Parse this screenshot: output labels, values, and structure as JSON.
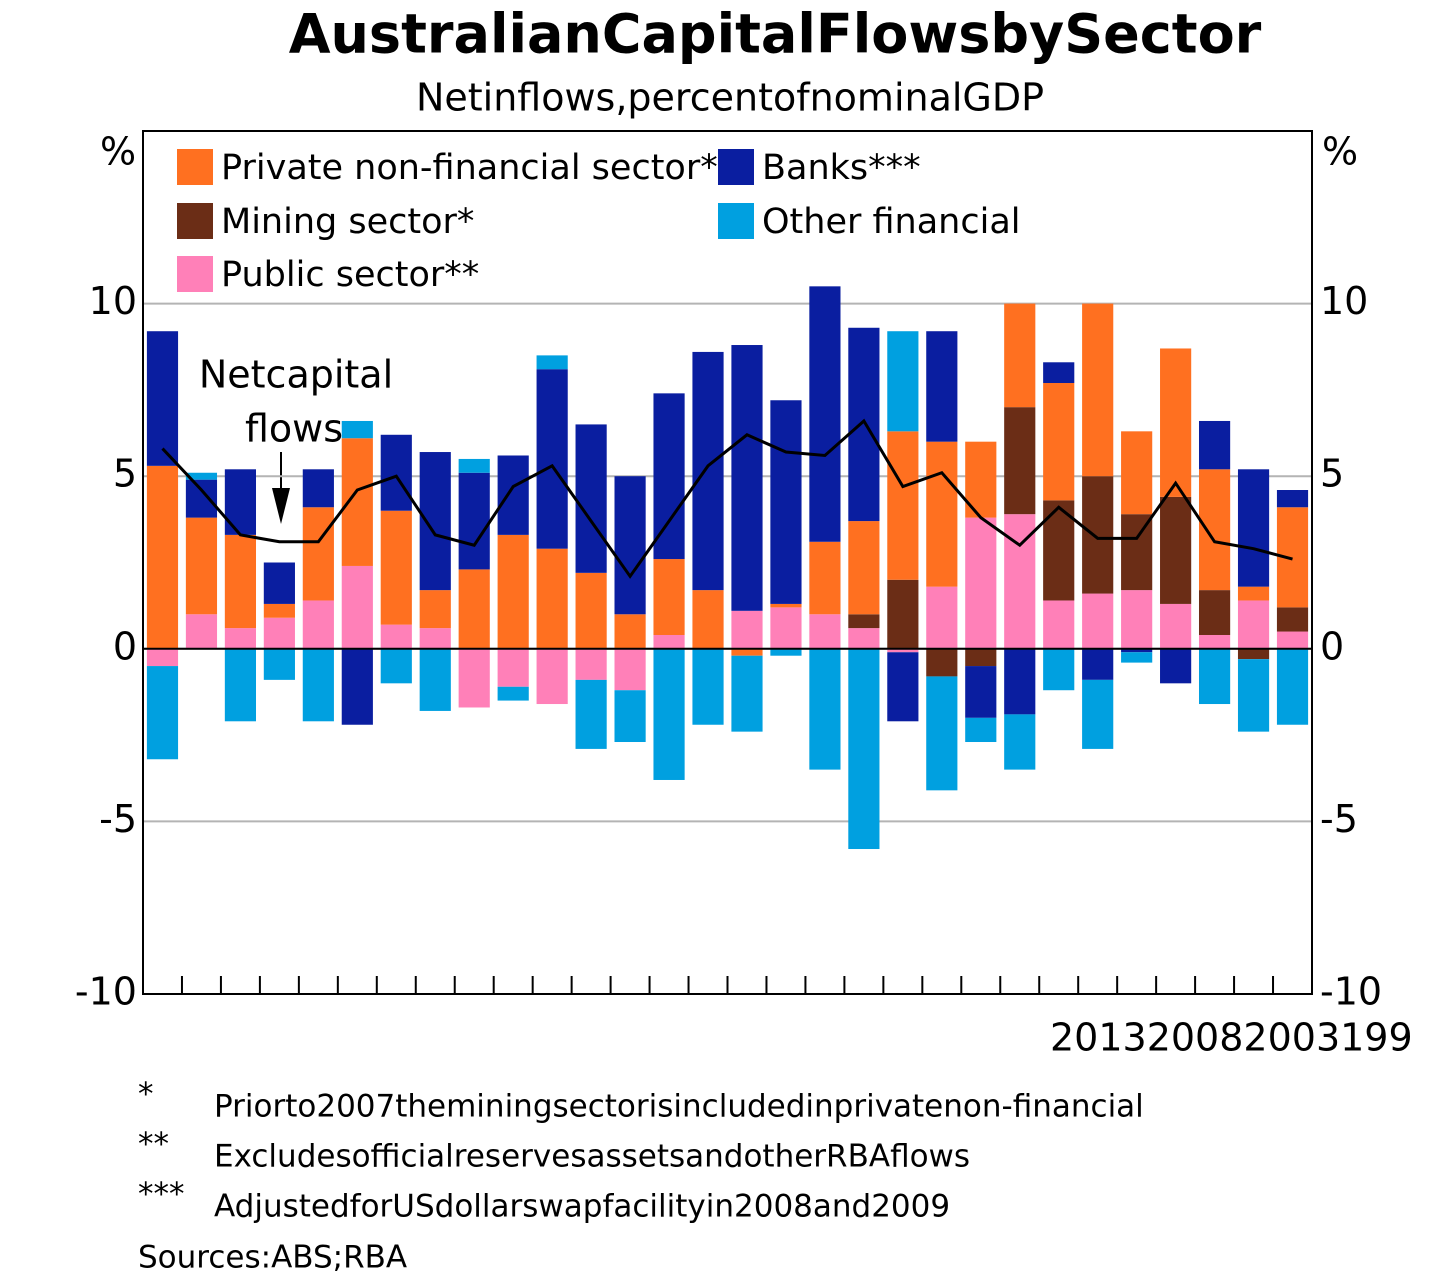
{
  "chart_data": {
    "type": "stacked-bar",
    "title": "AustralianCapitalFlowsbySector",
    "subtitle": "Netinflows,percentofnominalGDP",
    "y_unit": "%",
    "y2_unit": "%",
    "x_label": "201320082003199",
    "categories": [
      null,
      null,
      null,
      null,
      null,
      null,
      null,
      null,
      null,
      null,
      null,
      null,
      null,
      null,
      null,
      null,
      null,
      null,
      null,
      null,
      null,
      null,
      null,
      null,
      null,
      null,
      null,
      null,
      null,
      null
    ],
    "series": [
      {
        "name": "Private non-financial sector*",
        "color": "#ff7020",
        "values": [
          5.3,
          2.8,
          2.7,
          0.4,
          2.7,
          3.7,
          3.3,
          1.1,
          2.3,
          3.3,
          2.9,
          2.2,
          1.0,
          2.2,
          1.7,
          -0.2,
          0.1,
          2.1,
          2.7,
          4.3,
          4.2,
          2.2,
          3.0,
          3.4,
          5.0,
          2.4,
          4.3,
          3.5,
          0.4,
          2.9
        ]
      },
      {
        "name": "Mining sector*",
        "color": "#6b2d16",
        "values": [
          0,
          0,
          0,
          0,
          0,
          0,
          0,
          0,
          0,
          0,
          0,
          0,
          0,
          0,
          0,
          0,
          0,
          0,
          0.4,
          2.0,
          -0.8,
          -0.5,
          3.1,
          2.9,
          3.4,
          2.2,
          3.1,
          1.3,
          -0.3,
          0.7
        ]
      },
      {
        "name": "Public sector**",
        "color": "#ff80b8",
        "values": [
          -0.5,
          1.0,
          0.6,
          0.9,
          1.4,
          2.4,
          0.7,
          0.6,
          -1.7,
          -1.1,
          -1.6,
          -0.9,
          -1.2,
          0.4,
          0,
          1.1,
          1.2,
          1.0,
          0.6,
          -0.1,
          1.8,
          3.8,
          3.9,
          1.4,
          1.6,
          1.7,
          1.3,
          0.4,
          1.4,
          0.5
        ]
      },
      {
        "name": "Banks***",
        "color": "#0a1ea0",
        "values": [
          3.9,
          1.1,
          1.9,
          1.2,
          1.1,
          -2.2,
          2.2,
          4.0,
          2.8,
          2.3,
          5.2,
          4.3,
          4.0,
          4.8,
          6.9,
          7.7,
          5.9,
          7.4,
          5.6,
          -2.0,
          3.2,
          -1.5,
          -1.9,
          0.6,
          -0.9,
          -0.1,
          -1.0,
          1.4,
          3.4,
          0.5
        ]
      },
      {
        "name": "Other financial",
        "color": "#00a0e0",
        "values": [
          -2.7,
          0.2,
          -2.1,
          -0.9,
          -2.1,
          0.5,
          -1.0,
          -1.8,
          0.4,
          -0.4,
          0.4,
          -2.0,
          -1.5,
          -3.8,
          -2.2,
          -2.2,
          -0.2,
          -3.5,
          -5.8,
          2.9,
          -3.3,
          -0.7,
          -1.6,
          -1.2,
          -2.0,
          -0.3,
          0,
          -1.6,
          -2.1,
          -2.2
        ]
      }
    ],
    "net_flows": {
      "color": "#000000",
      "values": [
        5.8,
        4.6,
        3.3,
        3.1,
        3.1,
        4.6,
        5.0,
        3.3,
        3.0,
        4.7,
        5.3,
        3.7,
        2.1,
        3.7,
        5.3,
        6.2,
        5.7,
        5.6,
        6.6,
        4.7,
        5.1,
        3.8,
        3.0,
        4.1,
        3.2,
        3.2,
        4.8,
        3.1,
        2.9,
        2.6
      ]
    },
    "annotation": [
      "Netcapital",
      "flows"
    ],
    "ylim": [
      -10,
      15
    ],
    "yticks": [
      -10,
      -5,
      0,
      5,
      10
    ],
    "y2lim": [
      -10,
      15
    ],
    "y2ticks": [
      -10,
      -5,
      0,
      5,
      10
    ],
    "grid": true,
    "footnotes": [
      {
        "mark": "*",
        "text": "Priorto2007theminingsectorisincludedinprivatenon-financial"
      },
      {
        "mark": "**",
        "text": "ExcludesofficialreservesassetsandotherRBAflows"
      },
      {
        "mark": "***",
        "text": "AdjustedforUSdollarswapfacilityin2008and2009"
      }
    ],
    "sources": "Sources:ABS;RBA"
  }
}
